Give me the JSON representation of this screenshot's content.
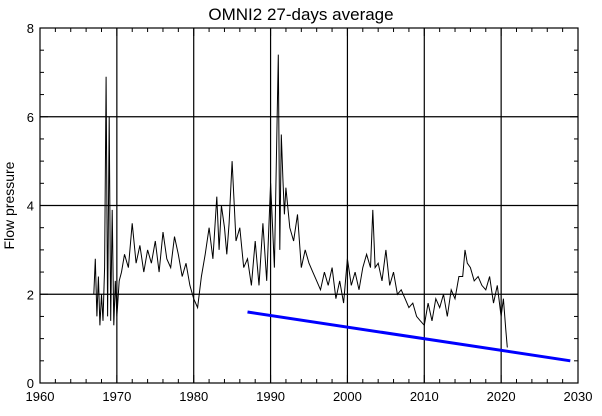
{
  "chart_data": {
    "type": "line",
    "title": "OMNI2 27-days average",
    "xlabel": "",
    "ylabel": "Flow pressure",
    "xlim": [
      1960,
      2030
    ],
    "ylim": [
      0,
      8
    ],
    "xticks": [
      1960,
      1970,
      1980,
      1990,
      2000,
      2010,
      2020,
      2030
    ],
    "yticks": [
      0,
      2,
      4,
      6,
      8
    ],
    "x_tick_labels": [
      "1960",
      "1970",
      "1980",
      "1990",
      "2000",
      "2010",
      "2020",
      "2030"
    ],
    "y_tick_labels": [
      "0",
      "2",
      "4",
      "6",
      "8"
    ],
    "grid": true,
    "legend": "none",
    "series": [
      {
        "color": "#000000",
        "x": [
          1967.0,
          1967.2,
          1967.4,
          1967.6,
          1967.8,
          1968.0,
          1968.2,
          1968.4,
          1968.6,
          1968.8,
          1969.0,
          1969.2,
          1969.4,
          1969.6,
          1969.8,
          1970.0,
          1970.3,
          1970.6,
          1971.0,
          1971.5,
          1972.0,
          1972.5,
          1973.0,
          1973.5,
          1974.0,
          1974.5,
          1975.0,
          1975.5,
          1976.0,
          1976.5,
          1977.0,
          1977.5,
          1978.0,
          1978.5,
          1979.0,
          1979.5,
          1980.0,
          1980.5,
          1981.0,
          1981.5,
          1982.0,
          1982.5,
          1983.0,
          1983.3,
          1983.6,
          1984.0,
          1984.3,
          1984.6,
          1985.0,
          1985.5,
          1986.0,
          1986.5,
          1987.0,
          1987.5,
          1988.0,
          1988.5,
          1989.0,
          1989.5,
          1990.0,
          1990.5,
          1991.0,
          1991.2,
          1991.4,
          1991.6,
          1991.8,
          1992.0,
          1992.5,
          1993.0,
          1993.5,
          1994.0,
          1994.5,
          1995.0,
          1995.5,
          1996.0,
          1996.5,
          1997.0,
          1997.5,
          1998.0,
          1998.5,
          1999.0,
          1999.5,
          2000.0,
          2000.5,
          2001.0,
          2001.5,
          2002.0,
          2002.5,
          2003.0,
          2003.3,
          2003.6,
          2004.0,
          2004.5,
          2005.0,
          2005.5,
          2006.0,
          2006.5,
          2007.0,
          2007.5,
          2008.0,
          2008.5,
          2009.0,
          2009.5,
          2010.0,
          2010.5,
          2011.0,
          2011.5,
          2012.0,
          2012.5,
          2013.0,
          2013.5,
          2014.0,
          2014.5,
          2015.0,
          2015.3,
          2015.6,
          2016.0,
          2016.5,
          2017.0,
          2017.5,
          2018.0,
          2018.5,
          2019.0,
          2019.5,
          2020.0,
          2020.3,
          2020.6,
          2020.8
        ],
        "y": [
          2.0,
          2.8,
          1.5,
          2.4,
          1.3,
          2.0,
          1.4,
          2.6,
          6.9,
          1.5,
          6.0,
          1.4,
          3.9,
          1.3,
          2.3,
          1.5,
          2.3,
          2.5,
          2.9,
          2.6,
          3.6,
          2.7,
          3.1,
          2.5,
          3.0,
          2.7,
          3.2,
          2.5,
          3.4,
          2.8,
          2.6,
          3.3,
          2.9,
          2.4,
          2.7,
          2.2,
          1.9,
          1.7,
          2.4,
          2.9,
          3.5,
          2.8,
          4.2,
          3.0,
          4.0,
          3.5,
          2.9,
          3.6,
          5.0,
          3.2,
          3.5,
          2.6,
          2.8,
          2.2,
          3.2,
          2.2,
          3.6,
          2.3,
          4.5,
          2.6,
          7.4,
          3.0,
          5.6,
          4.6,
          3.8,
          4.4,
          3.5,
          3.2,
          3.8,
          2.6,
          3.0,
          2.7,
          2.5,
          2.3,
          2.1,
          2.5,
          2.2,
          2.6,
          1.9,
          2.3,
          1.8,
          2.8,
          2.2,
          2.5,
          2.1,
          2.6,
          2.9,
          2.6,
          3.9,
          2.6,
          2.7,
          2.3,
          3.0,
          2.2,
          2.5,
          2.0,
          2.1,
          1.9,
          1.7,
          1.8,
          1.5,
          1.4,
          1.3,
          1.8,
          1.4,
          1.9,
          1.7,
          2.0,
          1.5,
          2.1,
          1.9,
          2.4,
          2.4,
          3.0,
          2.7,
          2.6,
          2.3,
          2.4,
          2.2,
          2.1,
          2.4,
          1.8,
          2.2,
          1.5,
          1.9,
          1.2,
          0.8
        ]
      },
      {
        "color": "#0000ff",
        "x": [
          1987,
          2029
        ],
        "y": [
          1.6,
          0.5
        ]
      }
    ]
  }
}
